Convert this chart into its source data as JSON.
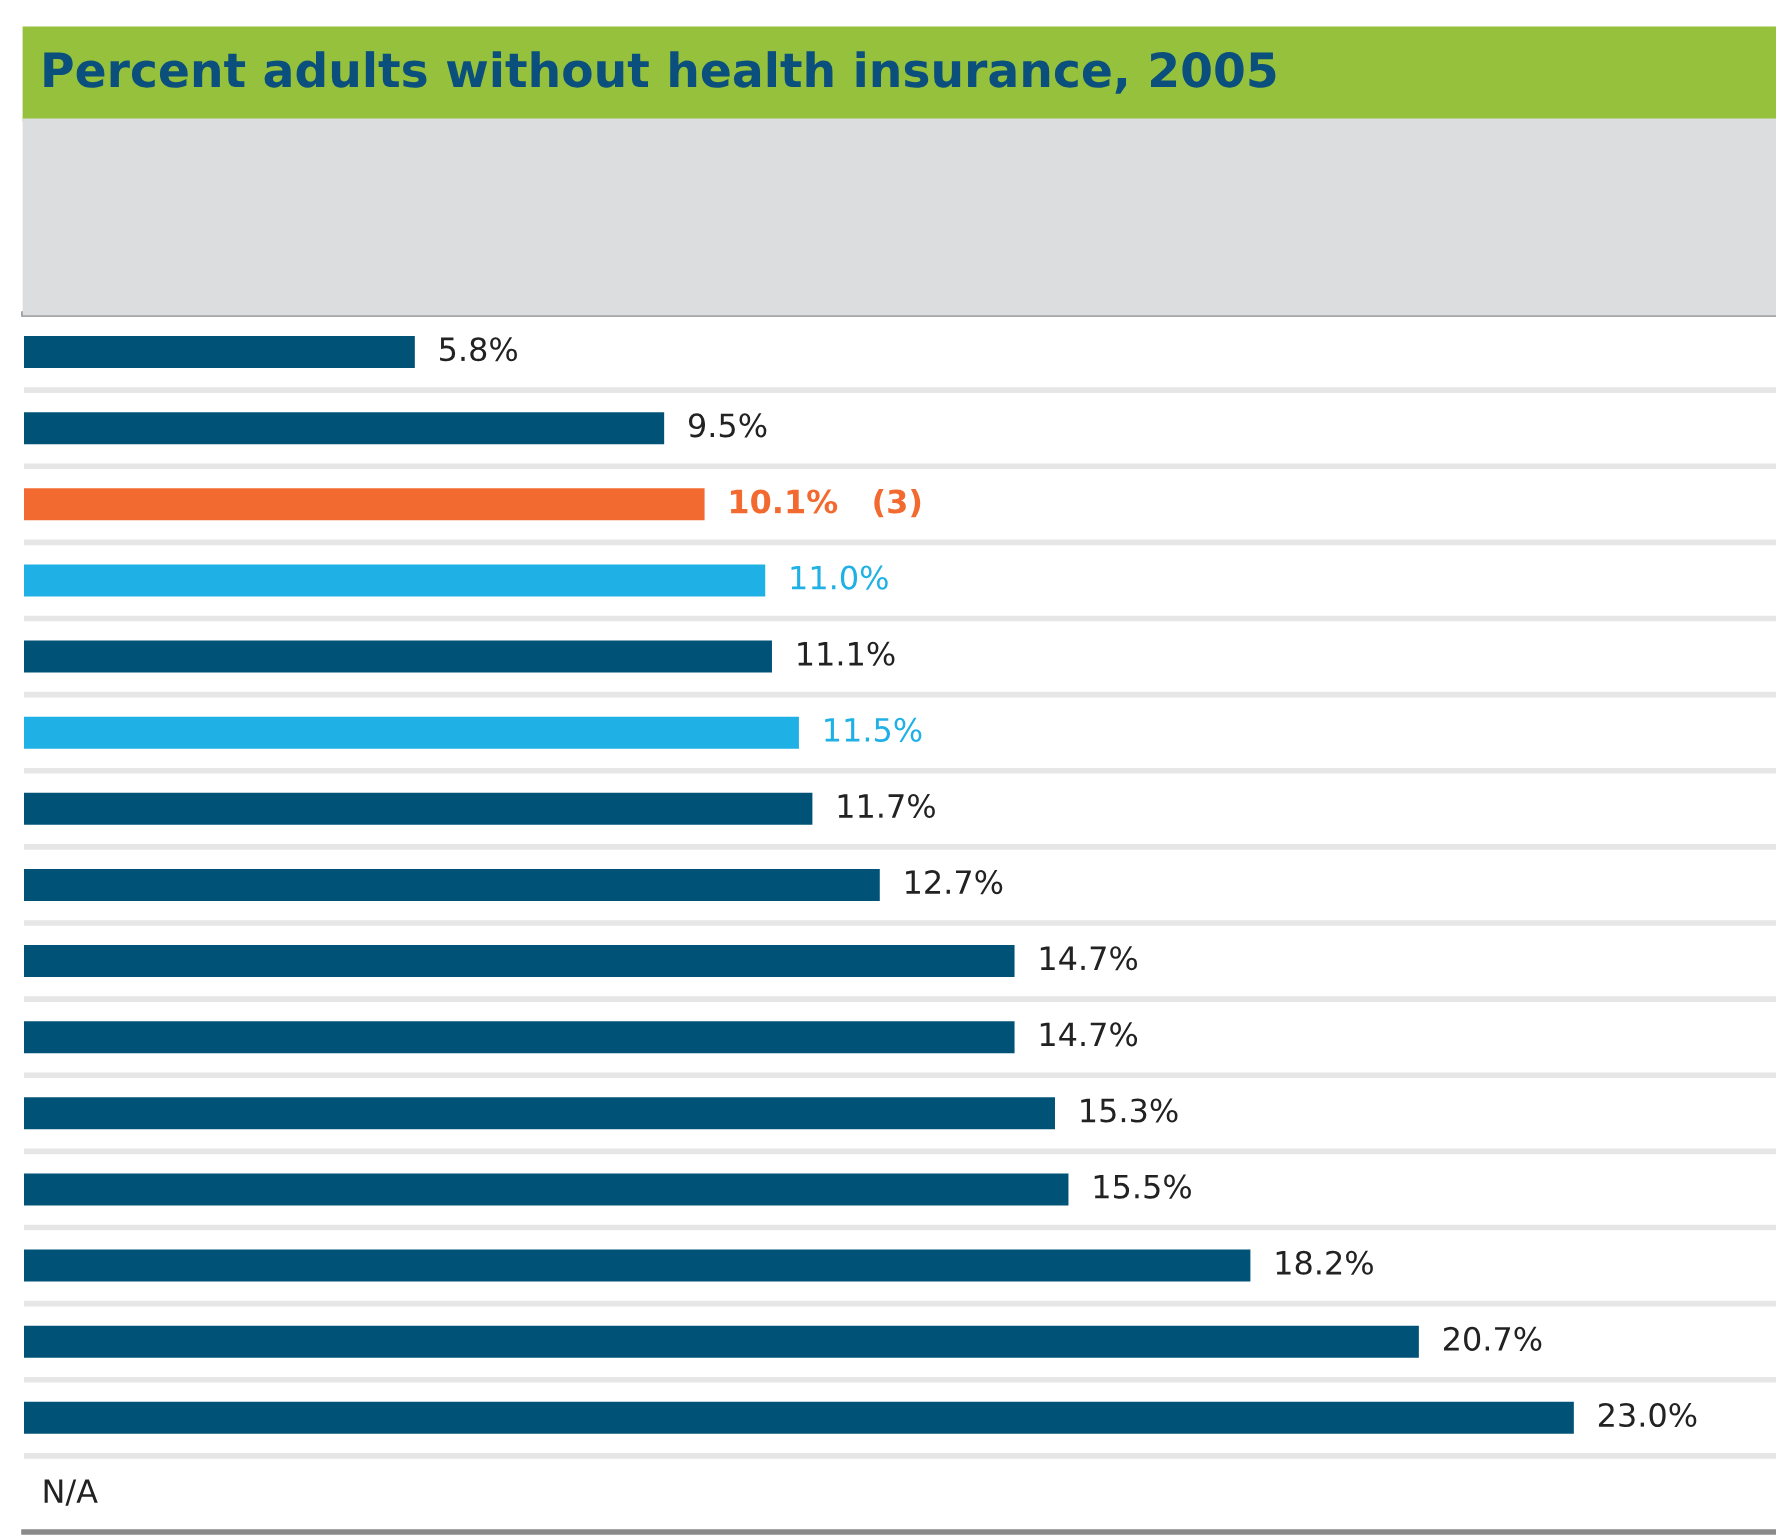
{
  "chart_data": {
    "type": "bar",
    "orientation": "horizontal",
    "title": "Percent adults without health insurance, 2005",
    "categories": [
      null,
      null,
      null,
      null,
      null,
      null,
      null,
      null,
      null,
      null,
      null,
      null,
      null,
      null,
      null
    ],
    "values": [
      5.8,
      9.5,
      10.1,
      11.0,
      11.1,
      11.5,
      11.7,
      12.7,
      14.7,
      14.7,
      15.3,
      15.5,
      18.2,
      20.7,
      23.0
    ],
    "value_labels": [
      "5.8%",
      "9.5%",
      "10.1%   (3)",
      "11.0%",
      "11.1%",
      "11.5%",
      "11.7%",
      "12.7%",
      "14.7%",
      "14.7%",
      "15.3%",
      "15.5%",
      "18.2%",
      "20.7%",
      "23.0%"
    ],
    "colors": [
      "#005377",
      "#005377",
      "#f26a30",
      "#1fb1e6",
      "#005377",
      "#1fb1e6",
      "#005377",
      "#005377",
      "#005377",
      "#005377",
      "#005377",
      "#005377",
      "#005377",
      "#005377",
      "#005377"
    ],
    "annotations": [
      "N/A"
    ],
    "xlim": [
      0,
      26
    ],
    "grid": "y",
    "legend": false
  }
}
